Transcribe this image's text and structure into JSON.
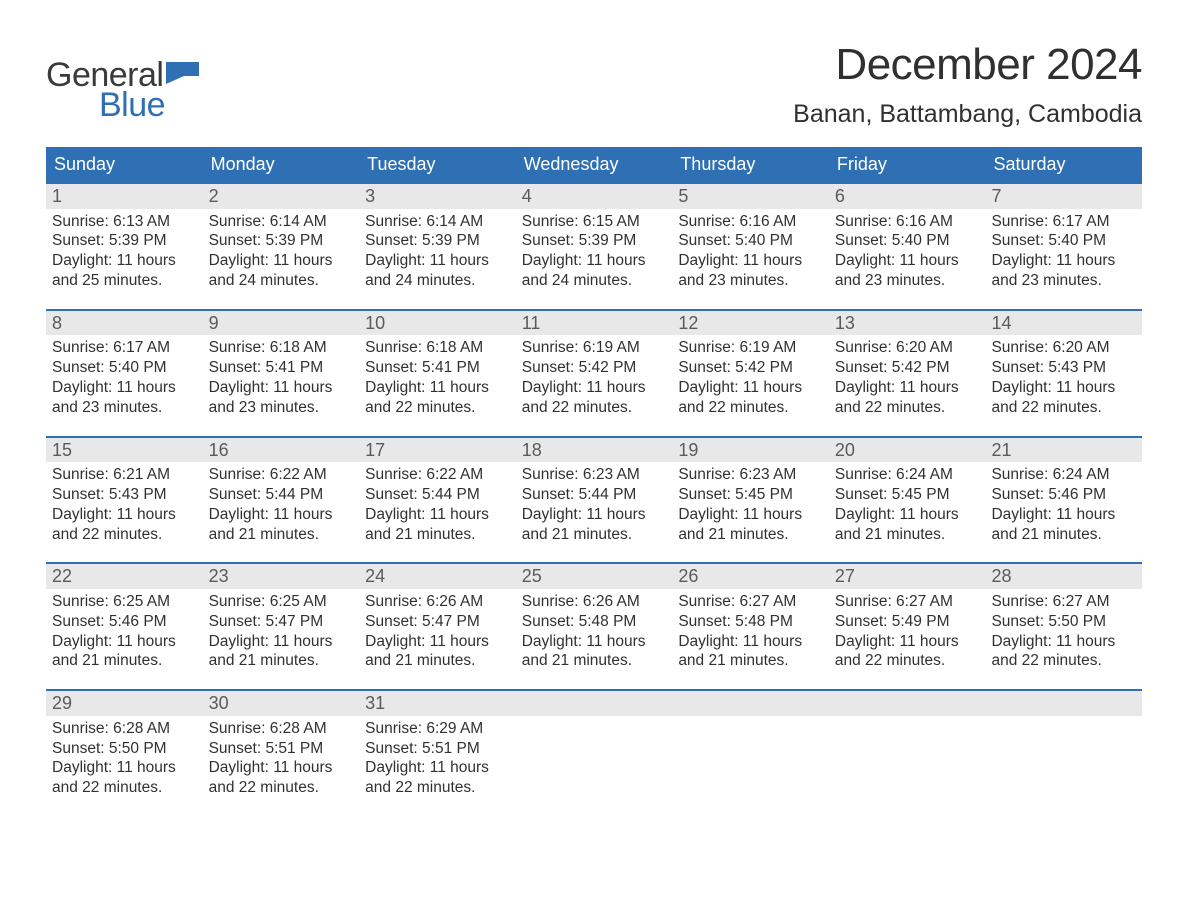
{
  "logo": {
    "word1": "General",
    "word2": "Blue",
    "flag_color": "#2f6fb3"
  },
  "title": "December 2024",
  "location": "Banan, Battambang, Cambodia",
  "colors": {
    "brand_blue": "#2f6fb3",
    "header_text": "#ffffff",
    "daynum_bg": "#e8e8e8",
    "daynum_fg": "#5b5b5b",
    "body_text": "#313131",
    "page_bg": "#ffffff",
    "week_border": "#2f6fb3"
  },
  "typography": {
    "month_title_pt": 44,
    "location_pt": 25,
    "weekday_pt": 18,
    "daynum_pt": 18,
    "body_pt": 15.5,
    "logo_pt": 34,
    "font_family": "Arial"
  },
  "weekdays": [
    "Sunday",
    "Monday",
    "Tuesday",
    "Wednesday",
    "Thursday",
    "Friday",
    "Saturday"
  ],
  "weeks": [
    [
      {
        "n": "1",
        "sunrise": "6:13 AM",
        "sunset": "5:39 PM",
        "dl": "11 hours and 25 minutes."
      },
      {
        "n": "2",
        "sunrise": "6:14 AM",
        "sunset": "5:39 PM",
        "dl": "11 hours and 24 minutes."
      },
      {
        "n": "3",
        "sunrise": "6:14 AM",
        "sunset": "5:39 PM",
        "dl": "11 hours and 24 minutes."
      },
      {
        "n": "4",
        "sunrise": "6:15 AM",
        "sunset": "5:39 PM",
        "dl": "11 hours and 24 minutes."
      },
      {
        "n": "5",
        "sunrise": "6:16 AM",
        "sunset": "5:40 PM",
        "dl": "11 hours and 23 minutes."
      },
      {
        "n": "6",
        "sunrise": "6:16 AM",
        "sunset": "5:40 PM",
        "dl": "11 hours and 23 minutes."
      },
      {
        "n": "7",
        "sunrise": "6:17 AM",
        "sunset": "5:40 PM",
        "dl": "11 hours and 23 minutes."
      }
    ],
    [
      {
        "n": "8",
        "sunrise": "6:17 AM",
        "sunset": "5:40 PM",
        "dl": "11 hours and 23 minutes."
      },
      {
        "n": "9",
        "sunrise": "6:18 AM",
        "sunset": "5:41 PM",
        "dl": "11 hours and 23 minutes."
      },
      {
        "n": "10",
        "sunrise": "6:18 AM",
        "sunset": "5:41 PM",
        "dl": "11 hours and 22 minutes."
      },
      {
        "n": "11",
        "sunrise": "6:19 AM",
        "sunset": "5:42 PM",
        "dl": "11 hours and 22 minutes."
      },
      {
        "n": "12",
        "sunrise": "6:19 AM",
        "sunset": "5:42 PM",
        "dl": "11 hours and 22 minutes."
      },
      {
        "n": "13",
        "sunrise": "6:20 AM",
        "sunset": "5:42 PM",
        "dl": "11 hours and 22 minutes."
      },
      {
        "n": "14",
        "sunrise": "6:20 AM",
        "sunset": "5:43 PM",
        "dl": "11 hours and 22 minutes."
      }
    ],
    [
      {
        "n": "15",
        "sunrise": "6:21 AM",
        "sunset": "5:43 PM",
        "dl": "11 hours and 22 minutes."
      },
      {
        "n": "16",
        "sunrise": "6:22 AM",
        "sunset": "5:44 PM",
        "dl": "11 hours and 21 minutes."
      },
      {
        "n": "17",
        "sunrise": "6:22 AM",
        "sunset": "5:44 PM",
        "dl": "11 hours and 21 minutes."
      },
      {
        "n": "18",
        "sunrise": "6:23 AM",
        "sunset": "5:44 PM",
        "dl": "11 hours and 21 minutes."
      },
      {
        "n": "19",
        "sunrise": "6:23 AM",
        "sunset": "5:45 PM",
        "dl": "11 hours and 21 minutes."
      },
      {
        "n": "20",
        "sunrise": "6:24 AM",
        "sunset": "5:45 PM",
        "dl": "11 hours and 21 minutes."
      },
      {
        "n": "21",
        "sunrise": "6:24 AM",
        "sunset": "5:46 PM",
        "dl": "11 hours and 21 minutes."
      }
    ],
    [
      {
        "n": "22",
        "sunrise": "6:25 AM",
        "sunset": "5:46 PM",
        "dl": "11 hours and 21 minutes."
      },
      {
        "n": "23",
        "sunrise": "6:25 AM",
        "sunset": "5:47 PM",
        "dl": "11 hours and 21 minutes."
      },
      {
        "n": "24",
        "sunrise": "6:26 AM",
        "sunset": "5:47 PM",
        "dl": "11 hours and 21 minutes."
      },
      {
        "n": "25",
        "sunrise": "6:26 AM",
        "sunset": "5:48 PM",
        "dl": "11 hours and 21 minutes."
      },
      {
        "n": "26",
        "sunrise": "6:27 AM",
        "sunset": "5:48 PM",
        "dl": "11 hours and 21 minutes."
      },
      {
        "n": "27",
        "sunrise": "6:27 AM",
        "sunset": "5:49 PM",
        "dl": "11 hours and 22 minutes."
      },
      {
        "n": "28",
        "sunrise": "6:27 AM",
        "sunset": "5:50 PM",
        "dl": "11 hours and 22 minutes."
      }
    ],
    [
      {
        "n": "29",
        "sunrise": "6:28 AM",
        "sunset": "5:50 PM",
        "dl": "11 hours and 22 minutes."
      },
      {
        "n": "30",
        "sunrise": "6:28 AM",
        "sunset": "5:51 PM",
        "dl": "11 hours and 22 minutes."
      },
      {
        "n": "31",
        "sunrise": "6:29 AM",
        "sunset": "5:51 PM",
        "dl": "11 hours and 22 minutes."
      },
      null,
      null,
      null,
      null
    ]
  ],
  "labels": {
    "sunrise_prefix": "Sunrise: ",
    "sunset_prefix": "Sunset: ",
    "daylight_prefix": "Daylight: "
  }
}
